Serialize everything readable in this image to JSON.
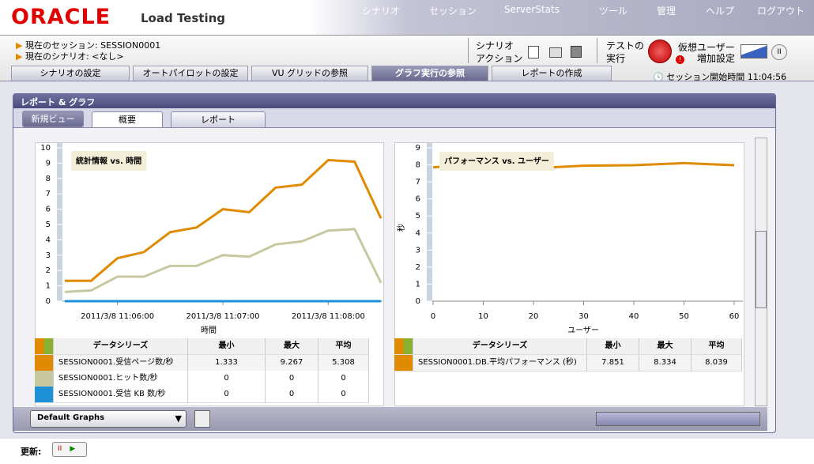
{
  "header": {
    "logo": "ORACLE",
    "product": "Load Testing",
    "menu": [
      "シナリオ",
      "セッション",
      "ServerStats",
      "ツール",
      "管理",
      "ヘルプ",
      "ログアウト"
    ]
  },
  "session": {
    "current_session": "現在のセッション: SESSION0001",
    "current_scenario": "現在のシナリオ: <なし>"
  },
  "toolbar": {
    "scenario_action": [
      "シナリオ",
      "アクション"
    ],
    "test_run": [
      "テストの",
      "実行"
    ],
    "vu_increase": [
      "仮想ユーザー",
      "増加設定"
    ]
  },
  "tabs": [
    "シナリオの設定",
    "オートパイロットの設定",
    "VU グリッドの参照",
    "グラフ実行の参照",
    "レポートの作成"
  ],
  "session_start": {
    "label": "セッション開始時間",
    "time": "11:04:56"
  },
  "panel": {
    "title": "レポート & グラフ",
    "subtabs": [
      "新規ビュー",
      "概要",
      "レポート"
    ]
  },
  "chart_data": [
    {
      "type": "line",
      "title": "統計情報 vs. 時間",
      "x_label": "時間",
      "x": [
        "2011/3/8 11:05:30",
        "2011/3/8 11:05:45",
        "2011/3/8 11:06:00",
        "2011/3/8 11:06:15",
        "2011/3/8 11:06:30",
        "2011/3/8 11:06:45",
        "2011/3/8 11:07:00",
        "2011/3/8 11:07:15",
        "2011/3/8 11:07:30",
        "2011/3/8 11:07:45",
        "2011/3/8 11:08:00",
        "2011/3/8 11:08:15",
        "2011/3/8 11:08:30"
      ],
      "xlim": [
        "2011/3/8 11:05:30",
        "2011/3/8 11:08:30"
      ],
      "xticks": [
        "2011/3/8 11:06:00",
        "2011/3/8 11:07:00",
        "2011/3/8 11:08:00"
      ],
      "ylim": [
        0,
        10
      ],
      "yticks": [
        0,
        1,
        2,
        3,
        4,
        5,
        6,
        7,
        8,
        9,
        10
      ],
      "series": [
        {
          "name": "SESSION0001.受信ページ数/秒",
          "color": "#e08a00",
          "values": [
            1.33,
            1.33,
            2.8,
            3.2,
            4.5,
            4.8,
            6.0,
            5.8,
            7.4,
            7.6,
            9.2,
            9.1,
            5.4
          ]
        },
        {
          "name": "SESSION0001.ヒット数/秒",
          "color": "#c8c8a0",
          "values": [
            0.6,
            0.7,
            1.6,
            1.6,
            2.3,
            2.3,
            3.0,
            2.9,
            3.7,
            3.9,
            4.6,
            4.7,
            1.2
          ]
        },
        {
          "name": "SESSION0001.受信 KB 数/秒",
          "color": "#1e90d8",
          "values": [
            0,
            0,
            0,
            0,
            0,
            0,
            0,
            0,
            0,
            0,
            0,
            0,
            0
          ]
        }
      ]
    },
    {
      "type": "line",
      "title": "パフォーマンス vs. ユーザー",
      "x_label": "ユーザー",
      "y_label": "秒",
      "x": [
        0,
        10,
        20,
        30,
        40,
        50,
        60
      ],
      "xlim": [
        0,
        60
      ],
      "xticks": [
        0,
        10,
        20,
        30,
        40,
        50,
        60
      ],
      "ylim": [
        0,
        9
      ],
      "yticks": [
        0,
        1,
        2,
        3,
        4,
        5,
        6,
        7,
        8,
        9
      ],
      "series": [
        {
          "name": "SESSION0001.DB.平均パフォーマンス (秒)",
          "color": "#e08a00",
          "values": [
            7.85,
            8.1,
            7.8,
            7.95,
            7.98,
            8.1,
            7.98
          ]
        }
      ]
    }
  ],
  "tables": [
    {
      "headers": [
        "データシリーズ",
        "最小",
        "最大",
        "平均"
      ],
      "rows": [
        [
          1.333,
          9.267,
          5.308
        ],
        [
          0,
          0,
          0
        ],
        [
          0,
          0,
          0
        ]
      ]
    },
    {
      "headers": [
        "データシリーズ",
        "最小",
        "最大",
        "平均"
      ],
      "rows": [
        [
          7.851,
          8.334,
          8.039
        ]
      ]
    }
  ],
  "footer": {
    "dropdown": "Default Graphs",
    "refresh": "更新:"
  }
}
